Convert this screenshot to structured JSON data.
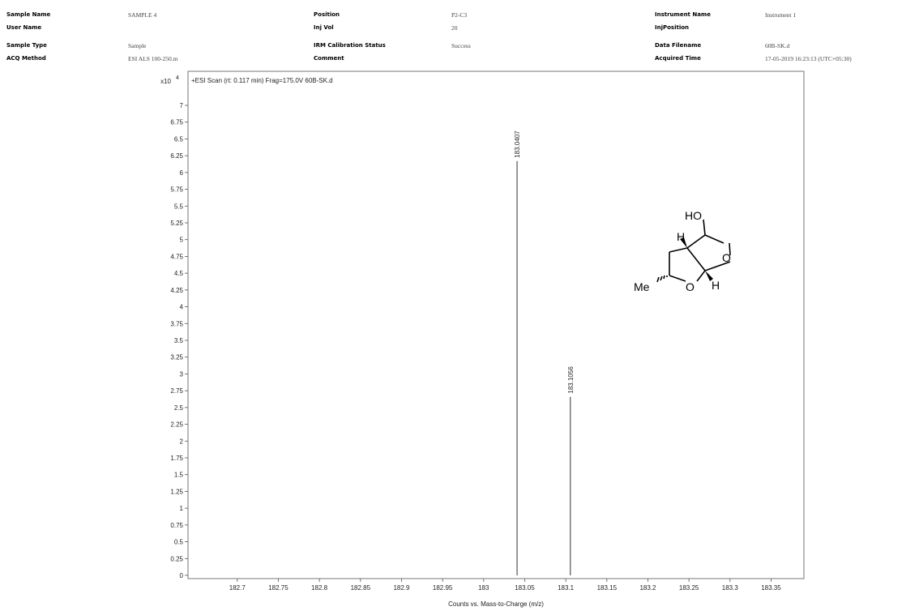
{
  "header": {
    "col1": [
      {
        "label": "Sample Name",
        "value": "SAMPLE 4"
      },
      {
        "label": "User Name",
        "value": ""
      },
      {
        "label": "Sample Type",
        "value": "Sample"
      },
      {
        "label": "ACQ Method",
        "value": "ESI ALS 100-250.m"
      }
    ],
    "col2": [
      {
        "label": "Position",
        "value": "P2-C3"
      },
      {
        "label": "Inj Vol",
        "value": "20"
      },
      {
        "label": "IRM Calibration Status",
        "value": "Success"
      },
      {
        "label": "Comment",
        "value": ""
      }
    ],
    "col3": [
      {
        "label": "Instrument Name",
        "value": "Instrument 1"
      },
      {
        "label": "InjPosition",
        "value": ""
      },
      {
        "label": "Data Filename",
        "value": "60B-SK.d"
      },
      {
        "label": "Acquired Time",
        "value": "17-05-2019 16:23:13 (UTC+05:30)"
      }
    ]
  },
  "chart_data": {
    "type": "bar",
    "title": "+ESI Scan (rt: 0.117 min) Frag=175.0V 60B-SK.d",
    "xlabel": "Counts vs. Mass-to-Charge (m/z)",
    "y_scale_label": "x10",
    "y_exponent": "4",
    "xlim": [
      182.64,
      183.39
    ],
    "ylim": [
      0,
      7.35
    ],
    "x_ticks": [
      182.7,
      182.75,
      182.8,
      182.85,
      182.9,
      182.95,
      183,
      183.05,
      183.1,
      183.15,
      183.2,
      183.25,
      183.3,
      183.35
    ],
    "x_tick_labels": [
      "182.7",
      "182.75",
      "182.8",
      "182.85",
      "182.9",
      "182.95",
      "183",
      "183.05",
      "183.1",
      "183.15",
      "183.2",
      "183.25",
      "183.3",
      "183.35"
    ],
    "y_ticks": [
      0,
      0.25,
      0.5,
      0.75,
      1,
      1.25,
      1.5,
      1.75,
      2,
      2.25,
      2.5,
      2.75,
      3,
      3.25,
      3.5,
      3.75,
      4,
      4.25,
      4.5,
      4.75,
      5,
      5.25,
      5.5,
      5.75,
      6,
      6.25,
      6.5,
      6.75,
      7
    ],
    "y_tick_labels": [
      "0",
      "0.25",
      "0.5",
      "0.75",
      "1",
      "1.25",
      "1.5",
      "1.75",
      "2",
      "2.25",
      "2.5",
      "2.75",
      "3",
      "3.25",
      "3.5",
      "3.75",
      "4",
      "4.25",
      "4.5",
      "4.75",
      "5",
      "5.25",
      "5.5",
      "5.75",
      "6",
      "6.25",
      "6.5",
      "6.75",
      "7"
    ],
    "peaks": [
      {
        "x": 183.0407,
        "y": 6.17,
        "label": "183.0407"
      },
      {
        "x": 183.1056,
        "y": 2.66,
        "label": "183.1056"
      }
    ],
    "grid": false
  },
  "structure": {
    "labels": {
      "ho": "HO",
      "o_ring_top": "O",
      "o_ring_bottom": "O",
      "h_top": "H",
      "h_bottom": "H",
      "me": "Me"
    }
  }
}
